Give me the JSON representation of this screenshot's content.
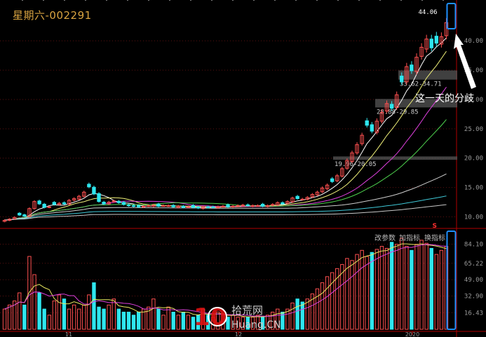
{
  "title": "星期六-002291",
  "toolbar": {
    "params": "改参数",
    "add": "加指标",
    "swap": "换指标"
  },
  "annotation": {
    "text": "这一天的分歧",
    "high_label": "44.06",
    "signal_mark": "S"
  },
  "zones": [
    {
      "label": "33.62-34.71",
      "low": 33.62,
      "high": 34.71
    },
    {
      "label": "28.88-29.85",
      "low": 28.88,
      "high": 29.85
    },
    {
      "label": "19.96-20.05",
      "low": 19.96,
      "high": 20.05
    }
  ],
  "watermark": {
    "num": "10",
    "cn": "拾荒网",
    "en": "Huang.CN"
  },
  "colors": {
    "up": "#ff5050",
    "down": "#2ee6ee",
    "bg": "#000000",
    "title": "#d9a441",
    "highlight": "#1e90ff"
  },
  "chart_data": [
    {
      "type": "candlestick",
      "name": "price",
      "y_ticks": [
        "10.00",
        "15.00",
        "20.00",
        "25.00",
        "30.00",
        "35.00",
        "40.00"
      ],
      "ylim": [
        8.5,
        46
      ],
      "x_labels": [
        "11",
        "12",
        "2020"
      ],
      "closes": [
        9.4,
        9.6,
        9.9,
        10.3,
        10.1,
        11.4,
        12.6,
        12.2,
        11.6,
        11.7,
        12.1,
        12.3,
        12.2,
        12.8,
        13.1,
        13.5,
        14.2,
        15.1,
        13.9,
        12.6,
        12.2,
        12.5,
        12.7,
        12.4,
        12.1,
        11.9,
        11.8,
        11.7,
        11.8,
        11.9,
        12.0,
        11.8,
        11.9,
        11.9,
        11.7,
        11.8,
        11.6,
        11.7,
        11.6,
        11.5,
        11.7,
        11.6,
        11.6,
        11.7,
        11.8,
        11.7,
        11.8,
        11.9,
        12.0,
        11.9,
        11.9,
        11.9,
        11.8,
        11.9,
        12.1,
        12.4,
        12.2,
        12.6,
        13.2,
        13.1,
        13.0,
        13.3,
        13.8,
        14.2,
        14.9,
        15.4,
        16.0,
        17.0,
        18.2,
        19.6,
        20.9,
        22.3,
        23.9,
        25.6,
        24.6,
        26.3,
        27.8,
        29.3,
        28.5,
        30.8,
        33.0,
        35.6,
        34.9,
        37.2,
        38.9,
        40.3,
        38.8,
        39.6,
        40.7,
        43.1
      ],
      "ma_periods": [
        5,
        10,
        20,
        30,
        60,
        120,
        250
      ]
    },
    {
      "type": "bar",
      "name": "volume",
      "y_ticks": [
        "16.43",
        "32.90",
        "49.00",
        "65.22",
        "84.10"
      ],
      "ylim": [
        0,
        90
      ],
      "values": [
        20,
        24,
        28,
        36,
        24,
        72,
        54,
        36,
        20,
        14,
        28,
        34,
        30,
        20,
        24,
        20,
        24,
        34,
        46,
        22,
        20,
        24,
        30,
        20,
        17,
        17,
        14,
        17,
        20,
        22,
        30,
        20,
        14,
        22,
        17,
        14,
        17,
        14,
        12,
        14,
        20,
        14,
        12,
        17,
        14,
        12,
        14,
        12,
        12,
        12,
        12,
        14,
        12,
        14,
        17,
        20,
        17,
        20,
        26,
        30,
        27,
        30,
        35,
        40,
        46,
        52,
        56,
        60,
        64,
        70,
        68,
        74,
        78,
        72,
        76,
        79,
        82,
        80,
        86,
        84,
        90,
        82,
        78,
        84,
        88,
        85,
        80,
        74,
        78,
        82
      ]
    }
  ]
}
